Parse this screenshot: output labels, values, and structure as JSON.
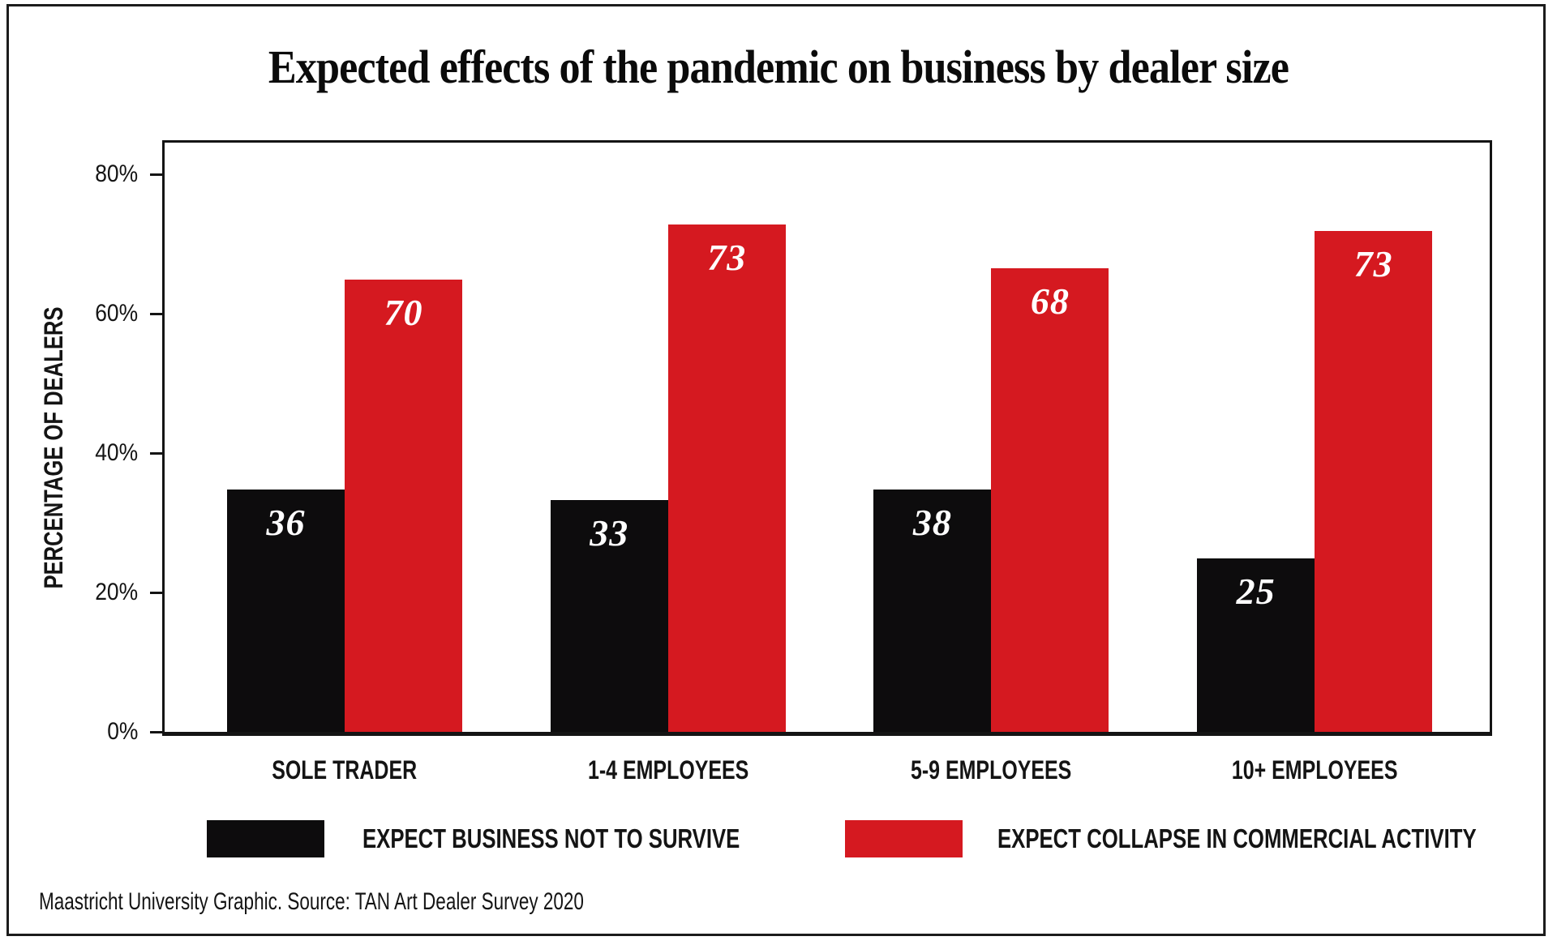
{
  "page": {
    "title": "Expected effects of the pandemic on business by dealer size",
    "source": "Maastricht University Graphic. Source: TAN Art Dealer Survey 2020"
  },
  "colors": {
    "background": "#ffffff",
    "frame_border": "#1c1c1c",
    "axis": "#141414",
    "black_series": "#0d0c0d",
    "red_series": "#d51920",
    "value_label": "#ffffff"
  },
  "chart_data": {
    "type": "bar",
    "title": "Expected effects of the pandemic on business by dealer size",
    "xlabel": "",
    "ylabel": "PERCENTAGE OF DEALERS",
    "unit": "%",
    "categories": [
      "SOLE TRADER",
      "1-4 EMPLOYEES",
      "5-9 EMPLOYEES",
      "10+ EMPLOYEES"
    ],
    "series": [
      {
        "name": "EXPECT BUSINESS NOT TO SURVIVE",
        "color": "#0d0c0d",
        "values": [
          36,
          33,
          38,
          25
        ],
        "rendered_heights_pct": [
          34.8,
          33.2,
          34.8,
          24.9
        ]
      },
      {
        "name": "EXPECT COLLAPSE IN COMMERCIAL ACTIVITY",
        "color": "#d51920",
        "values": [
          70,
          73,
          68,
          73
        ],
        "rendered_heights_pct": [
          64.9,
          72.8,
          66.5,
          71.9
        ]
      }
    ],
    "yticks": [
      {
        "label": "80%",
        "value": 80
      },
      {
        "label": "60%",
        "value": 60
      },
      {
        "label": "40%",
        "value": 40
      },
      {
        "label": "20%",
        "value": 20
      },
      {
        "label": "0%",
        "value": 0
      }
    ],
    "ylim": [
      0,
      84.5
    ],
    "grid": false,
    "legend_position": "bottom",
    "value_labels_inside_bars": true,
    "source": "Maastricht University Graphic. Source: TAN Art Dealer Survey 2020"
  }
}
